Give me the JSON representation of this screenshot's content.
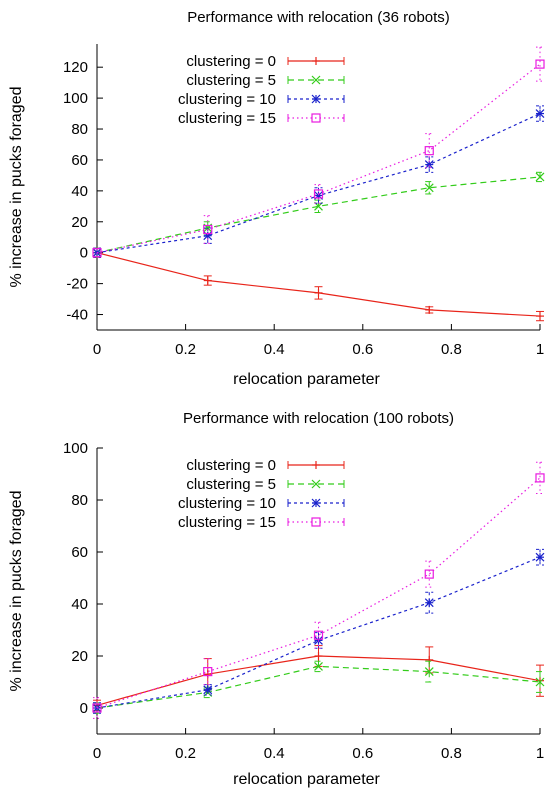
{
  "chart_data": [
    {
      "type": "line",
      "title": "Performance with relocation (36 robots)",
      "xlabel": "relocation parameter",
      "ylabel": "% increase in pucks foraged",
      "xlim": [
        0,
        1
      ],
      "ylim": [
        -50,
        135
      ],
      "xticks": [
        0,
        0.2,
        0.4,
        0.6,
        0.8,
        1
      ],
      "xtick_labels": [
        "0",
        "0.2",
        "0.4",
        "0.6",
        "0.8",
        "1"
      ],
      "yticks": [
        -40,
        -20,
        0,
        20,
        40,
        60,
        80,
        100,
        120
      ],
      "ytick_labels": [
        "-40",
        "-20",
        "0",
        "20",
        "40",
        "60",
        "80",
        "100",
        "120"
      ],
      "grid": false,
      "legend_position": "top-left",
      "x": [
        0,
        0.25,
        0.5,
        0.75,
        1
      ],
      "series": [
        {
          "name": "clustering = 0",
          "color": "#e8241a",
          "dash": "solid",
          "marker": "plus",
          "values": [
            0,
            -18,
            -26,
            -37,
            -41
          ],
          "errors": [
            3,
            3,
            4,
            2,
            3
          ]
        },
        {
          "name": "clustering = 5",
          "color": "#33cc1a",
          "dash": "dashed",
          "marker": "cross",
          "values": [
            0,
            16,
            30,
            42,
            49
          ],
          "errors": [
            3,
            4,
            4,
            4,
            3
          ]
        },
        {
          "name": "clustering = 10",
          "color": "#1a22cc",
          "dash": "dense",
          "marker": "star",
          "values": [
            0,
            11,
            37,
            57,
            90
          ],
          "errors": [
            3,
            5,
            5,
            5,
            5
          ]
        },
        {
          "name": "clustering = 15",
          "color": "#e81ae0",
          "dash": "dotted",
          "marker": "square",
          "values": [
            0,
            15,
            38,
            66,
            122
          ],
          "errors": [
            3,
            9,
            6,
            11,
            11
          ]
        }
      ]
    },
    {
      "type": "line",
      "title": "Performance with relocation (100 robots)",
      "xlabel": "relocation parameter",
      "ylabel": "% increase in pucks foraged",
      "xlim": [
        0,
        1
      ],
      "ylim": [
        -10,
        100
      ],
      "xticks": [
        0,
        0.2,
        0.4,
        0.6,
        0.8,
        1
      ],
      "xtick_labels": [
        "0",
        "0.2",
        "0.4",
        "0.6",
        "0.8",
        "1"
      ],
      "yticks": [
        0,
        20,
        40,
        60,
        80,
        100
      ],
      "ytick_labels": [
        "0",
        "20",
        "40",
        "60",
        "80",
        "100"
      ],
      "grid": false,
      "legend_position": "top-left",
      "x": [
        0,
        0.25,
        0.5,
        0.75,
        1
      ],
      "series": [
        {
          "name": "clustering = 0",
          "color": "#e8241a",
          "dash": "solid",
          "marker": "plus",
          "values": [
            1,
            13,
            20,
            18.5,
            10.5
          ],
          "errors": [
            2,
            6,
            4,
            5,
            6
          ]
        },
        {
          "name": "clustering = 5",
          "color": "#33cc1a",
          "dash": "dashed",
          "marker": "cross",
          "values": [
            0,
            6,
            16,
            14,
            10
          ],
          "errors": [
            2,
            2,
            2,
            4,
            4
          ]
        },
        {
          "name": "clustering = 10",
          "color": "#1a22cc",
          "dash": "dense",
          "marker": "star",
          "values": [
            0,
            7,
            26,
            40.5,
            58
          ],
          "errors": [
            2,
            2,
            3,
            4,
            3
          ]
        },
        {
          "name": "clustering = 15",
          "color": "#e81ae0",
          "dash": "dotted",
          "marker": "square",
          "values": [
            0,
            14,
            28,
            51.5,
            88.5
          ],
          "errors": [
            4,
            5,
            5,
            5,
            6
          ]
        }
      ]
    }
  ]
}
